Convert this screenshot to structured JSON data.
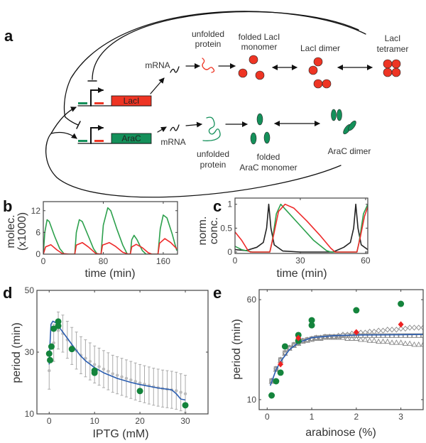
{
  "panels": {
    "a": "a",
    "b": "b",
    "c": "c",
    "d": "d",
    "e": "e"
  },
  "diagram": {
    "genes": {
      "laci": "LacI",
      "arac": "AraC"
    },
    "laci_row": {
      "mrna": "mRNA",
      "unfolded": [
        "unfolded",
        "protein"
      ],
      "monomer": [
        "folded LacI",
        "monomer"
      ],
      "dimer": "LacI dimer",
      "tetramer": [
        "LacI",
        "tetramer"
      ]
    },
    "arac_row": {
      "mrna": "mRNA",
      "unfolded": [
        "unfolded",
        "protein"
      ],
      "monomer": [
        "folded",
        "AraC monomer"
      ],
      "dimer": "AraC dimer"
    },
    "colors": {
      "laci": "#ee3524",
      "arac": "#14905a",
      "line": "#111111"
    }
  },
  "chart_data": [
    {
      "id": "b",
      "type": "line",
      "xlabel": "time (min)",
      "ylabel": [
        "molec.",
        "(x1000)"
      ],
      "xlim": [
        0,
        179
      ],
      "ylim": [
        0,
        14.5
      ],
      "xticks": [
        0,
        80,
        160
      ],
      "yticks": [
        0,
        6,
        12
      ],
      "series": [
        {
          "color": "#2ca04c",
          "points": [
            [
              0,
              0
            ],
            [
              2,
              6
            ],
            [
              5,
              9.5
            ],
            [
              8,
              9
            ],
            [
              15,
              5
            ],
            [
              22,
              1.5
            ],
            [
              28,
              0
            ],
            [
              42,
              0
            ],
            [
              44,
              6
            ],
            [
              48,
              9.5
            ],
            [
              52,
              9
            ],
            [
              60,
              5
            ],
            [
              67,
              1.5
            ],
            [
              72,
              0
            ],
            [
              77,
              0
            ],
            [
              80,
              8
            ],
            [
              86,
              12.8
            ],
            [
              90,
              12
            ],
            [
              98,
              7
            ],
            [
              106,
              2.5
            ],
            [
              112,
              0
            ],
            [
              116,
              0
            ],
            [
              118,
              4
            ],
            [
              121,
              5.2
            ],
            [
              125,
              4
            ],
            [
              132,
              1
            ],
            [
              137,
              0
            ],
            [
              153,
              0
            ],
            [
              156,
              7
            ],
            [
              160,
              10.8
            ],
            [
              165,
              10
            ],
            [
              172,
              5.5
            ],
            [
              178,
              1
            ]
          ]
        },
        {
          "color": "#ee2a2a",
          "points": [
            [
              0,
              0
            ],
            [
              3,
              2
            ],
            [
              10,
              2.6
            ],
            [
              18,
              1.2
            ],
            [
              25,
              0.2
            ],
            [
              35,
              0
            ],
            [
              42,
              0
            ],
            [
              44,
              2.5
            ],
            [
              52,
              3.2
            ],
            [
              60,
              2
            ],
            [
              70,
              0.2
            ],
            [
              77,
              0
            ],
            [
              79,
              2.5
            ],
            [
              88,
              3.2
            ],
            [
              96,
              2.2
            ],
            [
              106,
              0.5
            ],
            [
              112,
              0.1
            ],
            [
              116,
              0
            ],
            [
              118,
              2
            ],
            [
              124,
              2.7
            ],
            [
              132,
              1.8
            ],
            [
              140,
              0.4
            ],
            [
              145,
              0
            ],
            [
              153,
              0
            ],
            [
              155,
              3
            ],
            [
              162,
              4.3
            ],
            [
              170,
              3.2
            ],
            [
              178,
              1.5
            ]
          ]
        }
      ]
    },
    {
      "id": "c",
      "type": "line",
      "xlabel": "time (min)",
      "ylabel": [
        "norm.",
        "conc."
      ],
      "xlim": [
        0,
        61
      ],
      "ylim": [
        -0.03,
        1.13
      ],
      "xticks": [
        0,
        30,
        60
      ],
      "yticks": [
        0,
        0.5,
        1
      ],
      "series": [
        {
          "color": "#222222",
          "points": [
            [
              0,
              0.05
            ],
            [
              5,
              0.03
            ],
            [
              10,
              0.1
            ],
            [
              13,
              0.2
            ],
            [
              14.5,
              0.5
            ],
            [
              15.5,
              1
            ],
            [
              16.5,
              0.5
            ],
            [
              18,
              0.15
            ],
            [
              22,
              0.02
            ],
            [
              30,
              0
            ],
            [
              45,
              0
            ],
            [
              50,
              0.1
            ],
            [
              53,
              0.2
            ],
            [
              54.5,
              0.5
            ],
            [
              55.5,
              1
            ],
            [
              56.5,
              0.5
            ],
            [
              58,
              0.15
            ],
            [
              61,
              0.05
            ]
          ]
        },
        {
          "color": "#2ca04c",
          "points": [
            [
              0,
              0.12
            ],
            [
              3,
              0.05
            ],
            [
              8,
              0
            ],
            [
              16,
              0
            ],
            [
              17,
              0.2
            ],
            [
              19,
              0.8
            ],
            [
              21,
              1
            ],
            [
              24,
              0.85
            ],
            [
              30,
              0.55
            ],
            [
              36,
              0.25
            ],
            [
              42,
              0.03
            ],
            [
              44,
              0
            ],
            [
              56,
              0
            ],
            [
              57,
              0.2
            ],
            [
              59,
              0.8
            ],
            [
              61,
              1
            ]
          ]
        },
        {
          "color": "#ee2a2a",
          "points": [
            [
              0,
              0.42
            ],
            [
              3,
              0.25
            ],
            [
              6,
              0.03
            ],
            [
              7,
              0
            ],
            [
              16,
              0
            ],
            [
              17.5,
              0.3
            ],
            [
              20,
              0.85
            ],
            [
              23,
              1
            ],
            [
              27,
              0.92
            ],
            [
              33,
              0.65
            ],
            [
              39,
              0.35
            ],
            [
              44,
              0.08
            ],
            [
              46,
              0
            ],
            [
              56,
              0
            ],
            [
              57.5,
              0.3
            ],
            [
              59.5,
              0.75
            ],
            [
              61,
              0.95
            ]
          ]
        }
      ]
    },
    {
      "id": "d",
      "type": "scatter",
      "xlabel": "IPTG (mM)",
      "ylabel": [
        "period (min)"
      ],
      "xlim": [
        -2.7,
        35
      ],
      "ylim": [
        10,
        50
      ],
      "xticks": [
        0,
        10,
        20,
        30
      ],
      "yticks": [
        10,
        30,
        50
      ],
      "errorbars": {
        "color": "#aaaaaa",
        "x": [
          0,
          1,
          2,
          3,
          4,
          5,
          6,
          7,
          8,
          9,
          10,
          11,
          12,
          13,
          14,
          15,
          16,
          17,
          18,
          19,
          20,
          21,
          22,
          23,
          24,
          25,
          26,
          27,
          28,
          29,
          30
        ],
        "y": [
          24,
          33,
          37,
          36,
          34,
          32,
          30.5,
          29,
          28,
          27,
          26,
          25.3,
          24.5,
          23.8,
          23,
          22.5,
          22,
          21.5,
          21,
          20.5,
          20,
          19.6,
          19.2,
          18.8,
          18.5,
          18.2,
          18,
          17.8,
          17.5,
          17,
          16.5
        ],
        "err": [
          6,
          6,
          6,
          6,
          6,
          6,
          6,
          6,
          6,
          6,
          6,
          6,
          6,
          6,
          6,
          6,
          6,
          6,
          6,
          6,
          6,
          6,
          6,
          6,
          6,
          6,
          6,
          6,
          6,
          6,
          6
        ]
      },
      "series": [
        {
          "kind": "line",
          "color": "#2a5db0",
          "points": [
            [
              0,
              26
            ],
            [
              0.2,
              33
            ],
            [
              0.4,
              39
            ],
            [
              0.8,
              40
            ],
            [
              1.5,
              39.5
            ],
            [
              2,
              38.5
            ],
            [
              3,
              36.5
            ],
            [
              4,
              34.5
            ],
            [
              5,
              32.5
            ],
            [
              6,
              30.5
            ],
            [
              7,
              28.7
            ],
            [
              8,
              27.2
            ],
            [
              10,
              25
            ],
            [
              12,
              23.3
            ],
            [
              15,
              21.5
            ],
            [
              18,
              20.2
            ],
            [
              20,
              19.5
            ],
            [
              24,
              18.4
            ],
            [
              27,
              17.8
            ],
            [
              28,
              16.5
            ],
            [
              29,
              14.8
            ],
            [
              30,
              14.5
            ]
          ]
        },
        {
          "kind": "circle",
          "color": "#14843c",
          "points": [
            [
              0,
              29.5
            ],
            [
              0.2,
              27.4
            ],
            [
              0.5,
              31.8
            ],
            [
              1,
              37.6
            ],
            [
              2,
              39.9
            ],
            [
              2,
              38.5
            ],
            [
              5,
              31
            ],
            [
              10,
              24
            ],
            [
              10,
              23.3
            ],
            [
              20,
              17.4
            ],
            [
              30,
              12.8
            ]
          ]
        }
      ]
    },
    {
      "id": "e",
      "type": "scatter",
      "xlabel": "arabinose (%)",
      "ylabel": [
        "period (min)"
      ],
      "xlim": [
        -0.18,
        3.5
      ],
      "ylim": [
        5,
        65
      ],
      "xticks": [
        0,
        1,
        2,
        3
      ],
      "yticks": [
        10,
        60
      ],
      "series": [
        {
          "kind": "diamond-open",
          "color": "#888888",
          "x": [
            0.1,
            0.2,
            0.3,
            0.4,
            0.5,
            0.6,
            0.7,
            0.8,
            0.9,
            1.0,
            1.1,
            1.2,
            1.3,
            1.4,
            1.5,
            1.6,
            1.7,
            1.8,
            1.9,
            2.0,
            2.1,
            2.2,
            2.3,
            2.4,
            2.5,
            2.6,
            2.7,
            2.8,
            2.9,
            3.0,
            3.1,
            3.2,
            3.3,
            3.4,
            3.5
          ],
          "y": [
            19.5,
            25.5,
            30,
            33.5,
            36,
            37.5,
            38.5,
            39.5,
            40,
            40.5,
            41,
            41,
            41.5,
            41.5,
            41.5,
            42,
            42.5,
            42.5,
            43,
            43,
            43.5,
            43.5,
            44,
            44,
            44.5,
            44.5,
            45,
            45,
            45,
            45.5,
            45.5,
            46,
            46,
            46,
            46
          ]
        },
        {
          "kind": "square-open",
          "color": "#888888",
          "x": [
            0.1,
            0.2,
            0.3,
            0.4,
            0.5,
            0.6,
            0.7,
            0.8,
            0.9,
            1.0,
            1.1,
            1.2,
            1.3,
            1.4,
            1.5,
            1.6,
            1.7,
            1.8,
            1.9,
            2.0,
            2.1,
            2.2,
            2.3,
            2.4,
            2.5,
            2.6,
            2.7,
            2.8,
            2.9,
            3.0,
            3.1,
            3.2,
            3.3,
            3.4,
            3.5
          ],
          "y": [
            19.5,
            25.5,
            30,
            33.5,
            36,
            37.5,
            38.5,
            39.5,
            40,
            40.5,
            41,
            41,
            41.5,
            41.5,
            41.5,
            41.5,
            42,
            42,
            42,
            42,
            42,
            42,
            42,
            42,
            42,
            42,
            42,
            42,
            42,
            42,
            42,
            42,
            42,
            42,
            42
          ]
        },
        {
          "kind": "triangle-open",
          "color": "#888888",
          "x": [
            0.1,
            0.2,
            0.3,
            0.4,
            0.5,
            0.6,
            0.7,
            0.8,
            0.9,
            1.0,
            1.1,
            1.2,
            1.3,
            1.4,
            1.5,
            1.6,
            1.7,
            1.8,
            1.9,
            2.0,
            2.1,
            2.2,
            2.3,
            2.4,
            2.5,
            2.6,
            2.7,
            2.8,
            2.9,
            3.0,
            3.1,
            3.2,
            3.3,
            3.4,
            3.5
          ],
          "y": [
            19,
            25,
            29.5,
            33,
            35.5,
            37,
            38,
            39,
            39.5,
            40,
            40.5,
            40.5,
            41,
            41,
            41,
            41,
            41,
            40.5,
            40.5,
            40.5,
            40,
            40,
            39.5,
            39.5,
            39,
            39,
            39,
            38.5,
            38.5,
            38.5,
            38,
            38,
            37.5,
            37.5,
            37.5
          ]
        },
        {
          "kind": "line",
          "color": "#2a5db0",
          "points": [
            [
              0.07,
              17
            ],
            [
              0.2,
              25
            ],
            [
              0.3,
              29
            ],
            [
              0.5,
              35
            ],
            [
              0.7,
              38.5
            ],
            [
              1,
              41
            ],
            [
              1.5,
              42
            ],
            [
              2,
              42.3
            ],
            [
              3,
              42.5
            ],
            [
              3.5,
              42.6
            ]
          ]
        },
        {
          "kind": "circle",
          "color": "#14843c",
          "points": [
            [
              0.1,
              12.1
            ],
            [
              0.2,
              19.2
            ],
            [
              0.3,
              23.5
            ],
            [
              0.4,
              36.6
            ],
            [
              0.7,
              42.3
            ],
            [
              0.7,
              39.4
            ],
            [
              1,
              49.7
            ],
            [
              1,
              47.2
            ],
            [
              2,
              54.7
            ],
            [
              3,
              57.9
            ]
          ]
        },
        {
          "kind": "diamond",
          "color": "#ee2222",
          "points": [
            [
              0.3,
              27.7
            ],
            [
              0.7,
              40.8
            ],
            [
              2,
              43.7
            ],
            [
              3,
              47.6
            ]
          ]
        }
      ]
    }
  ]
}
